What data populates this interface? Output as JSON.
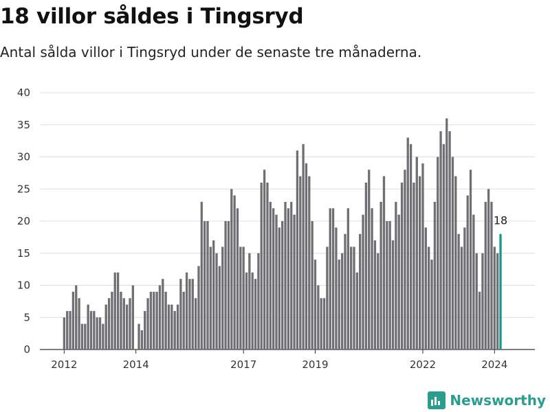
{
  "header": {
    "title": "18 villor såldes i Tingsryd",
    "subtitle": "Antal sålda villor i Tingsryd under de senaste tre månaderna."
  },
  "brand": {
    "name": "Newsworthy",
    "icon": "chart-logo-icon",
    "color": "#2a9d8f"
  },
  "colors": {
    "bar": "#6e6e73",
    "highlight": "#16968a",
    "grid": "#dddddd"
  },
  "chart_data": {
    "type": "bar",
    "title": "18 villor såldes i Tingsryd",
    "subtitle": "Antal sålda villor i Tingsryd under de senaste tre månaderna.",
    "xlabel": "",
    "ylabel": "",
    "ylim": [
      0,
      40
    ],
    "yticks": [
      0,
      5,
      10,
      15,
      20,
      25,
      30,
      35,
      40
    ],
    "xticks": [
      "2012",
      "2014",
      "2017",
      "2019",
      "2022",
      "2024"
    ],
    "grid": true,
    "start_month": "2012-01",
    "values": [
      5,
      6,
      6,
      9,
      10,
      8,
      4,
      4,
      7,
      6,
      6,
      5,
      5,
      4,
      7,
      8,
      9,
      12,
      12,
      9,
      8,
      7,
      8,
      10,
      0,
      4,
      3,
      6,
      8,
      9,
      9,
      9,
      10,
      11,
      9,
      7,
      7,
      6,
      7,
      11,
      9,
      12,
      11,
      11,
      8,
      13,
      23,
      20,
      20,
      16,
      17,
      15,
      13,
      16,
      20,
      20,
      25,
      24,
      22,
      16,
      16,
      12,
      15,
      12,
      11,
      15,
      26,
      28,
      26,
      23,
      22,
      21,
      19,
      20,
      23,
      22,
      23,
      21,
      31,
      27,
      32,
      29,
      27,
      20,
      14,
      10,
      8,
      8,
      16,
      22,
      22,
      19,
      14,
      15,
      18,
      22,
      16,
      16,
      12,
      18,
      21,
      26,
      28,
      22,
      17,
      15,
      23,
      27,
      20,
      20,
      17,
      23,
      21,
      26,
      28,
      33,
      32,
      26,
      30,
      27,
      29,
      19,
      16,
      14,
      23,
      30,
      34,
      32,
      36,
      34,
      30,
      27,
      18,
      16,
      19,
      24,
      28,
      21,
      15,
      9,
      15,
      23,
      25,
      23,
      16,
      15,
      18
    ],
    "highlight_last": true,
    "annotations": [
      {
        "text": "18"
      }
    ]
  }
}
